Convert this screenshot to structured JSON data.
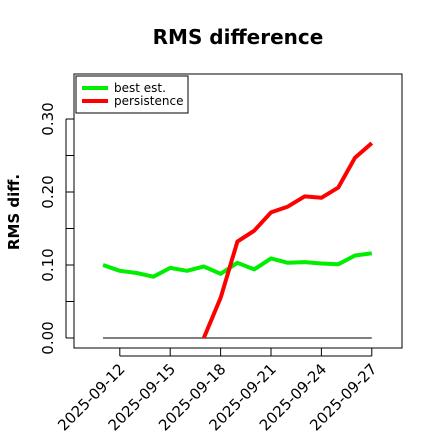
{
  "chart_data": {
    "type": "line",
    "title": "RMS difference",
    "xlabel": "",
    "ylabel": "RMS diff.",
    "x": [
      "2025-09-11",
      "2025-09-12",
      "2025-09-13",
      "2025-09-14",
      "2025-09-15",
      "2025-09-16",
      "2025-09-17",
      "2025-09-18",
      "2025-09-19",
      "2025-09-20",
      "2025-09-21",
      "2025-09-22",
      "2025-09-23",
      "2025-09-24",
      "2025-09-25",
      "2025-09-26",
      "2025-09-27"
    ],
    "x_ticks": [
      "2025-09-12",
      "2025-09-15",
      "2025-09-18",
      "2025-09-21",
      "2025-09-24",
      "2025-09-27"
    ],
    "y_ticks": [
      "0.00",
      "0.10",
      "0.20",
      "0.30"
    ],
    "ylim": [
      -0.005,
      0.36
    ],
    "legend_position": "top-left",
    "grid": false,
    "series": [
      {
        "name": "best est.",
        "color": "#00ee00",
        "values": [
          0.1,
          0.092,
          0.089,
          0.084,
          0.096,
          0.092,
          0.098,
          0.088,
          0.103,
          0.094,
          0.109,
          0.103,
          0.104,
          0.102,
          0.101,
          0.113,
          0.116
        ]
      },
      {
        "name": "persistence",
        "color": "#ff0000",
        "values": [
          null,
          null,
          null,
          null,
          null,
          null,
          0.0,
          0.055,
          0.132,
          0.147,
          0.172,
          0.18,
          0.194,
          0.192,
          0.206,
          0.247,
          0.267
        ]
      }
    ],
    "reference_line": {
      "value": 0.0,
      "color": "#555555"
    }
  }
}
